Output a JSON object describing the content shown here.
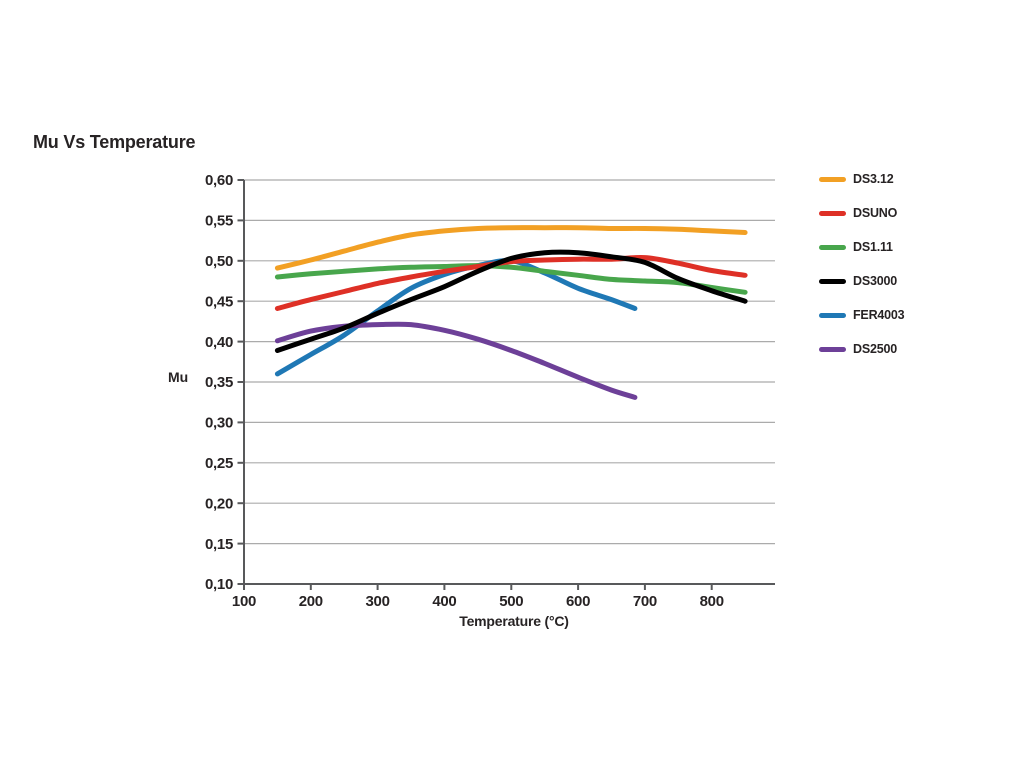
{
  "chart": {
    "title": "Mu Vs Temperature",
    "xlabel": "Temperature (°C)",
    "ylabel": "Mu"
  },
  "chart_data": {
    "type": "line",
    "title": "Mu Vs Temperature",
    "xlabel": "Temperature (°C)",
    "ylabel": "Mu",
    "xlim": [
      100,
      900
    ],
    "ylim": [
      0.1,
      0.6
    ],
    "x_ticks": [
      100,
      200,
      300,
      400,
      500,
      600,
      700,
      800
    ],
    "x_tick_labels": [
      "100",
      "200",
      "300",
      "400",
      "500",
      "600",
      "700",
      "800"
    ],
    "y_ticks": [
      0.6,
      0.55,
      0.5,
      0.45,
      0.4,
      0.35,
      0.3,
      0.25,
      0.2,
      0.15,
      0.1
    ],
    "y_tick_labels": [
      "0,60",
      "0,55",
      "0,50",
      "0,45",
      "0,40",
      "0,35",
      "0,30",
      "0,25",
      "0,20",
      "0,15",
      "0,10"
    ],
    "decimal_separator": ",",
    "grid": "horizontal-only",
    "gridline_color": "#ABABAB",
    "axis_color": "#58595B",
    "legend_position": "right",
    "line_width": 5,
    "series": [
      {
        "name": "DS3.12",
        "color": "#F2A024",
        "x": [
          150,
          200,
          250,
          300,
          350,
          400,
          450,
          500,
          550,
          600,
          650,
          700,
          750,
          800,
          850
        ],
        "y": [
          0.491,
          0.501,
          0.512,
          0.523,
          0.532,
          0.537,
          0.54,
          0.541,
          0.541,
          0.541,
          0.54,
          0.54,
          0.539,
          0.537,
          0.535
        ]
      },
      {
        "name": "DSUNO",
        "color": "#DE3026",
        "x": [
          150,
          200,
          250,
          300,
          350,
          400,
          450,
          500,
          550,
          600,
          650,
          700,
          750,
          800,
          850
        ],
        "y": [
          0.441,
          0.452,
          0.462,
          0.472,
          0.48,
          0.487,
          0.493,
          0.499,
          0.501,
          0.502,
          0.502,
          0.504,
          0.497,
          0.488,
          0.482
        ]
      },
      {
        "name": "DS1.11",
        "color": "#48A64C",
        "x": [
          150,
          200,
          250,
          300,
          350,
          400,
          450,
          500,
          550,
          600,
          650,
          700,
          750,
          800,
          850
        ],
        "y": [
          0.48,
          0.484,
          0.487,
          0.49,
          0.492,
          0.493,
          0.494,
          0.492,
          0.487,
          0.482,
          0.477,
          0.475,
          0.473,
          0.467,
          0.461
        ]
      },
      {
        "name": "DS3000",
        "color": "#000000",
        "x": [
          150,
          200,
          250,
          300,
          350,
          400,
          450,
          500,
          550,
          600,
          650,
          700,
          750,
          800,
          850
        ],
        "y": [
          0.389,
          0.403,
          0.417,
          0.435,
          0.452,
          0.468,
          0.487,
          0.503,
          0.51,
          0.51,
          0.505,
          0.498,
          0.478,
          0.463,
          0.45
        ]
      },
      {
        "name": "FER4003",
        "color": "#1F78B5",
        "x": [
          150,
          200,
          250,
          300,
          350,
          400,
          450,
          500,
          550,
          600,
          650,
          685
        ],
        "y": [
          0.36,
          0.384,
          0.408,
          0.438,
          0.466,
          0.483,
          0.494,
          0.5,
          0.485,
          0.466,
          0.452,
          0.441
        ]
      },
      {
        "name": "DS2500",
        "color": "#6D4098",
        "x": [
          150,
          200,
          250,
          300,
          350,
          400,
          450,
          500,
          550,
          600,
          650,
          685
        ],
        "y": [
          0.401,
          0.413,
          0.419,
          0.421,
          0.421,
          0.414,
          0.403,
          0.389,
          0.373,
          0.356,
          0.34,
          0.331
        ]
      }
    ]
  }
}
